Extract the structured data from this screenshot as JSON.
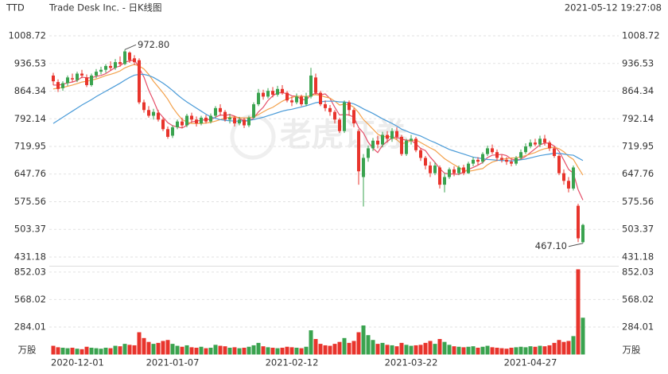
{
  "chart_data": [
    {
      "type": "candlestick",
      "ticker": "TTD",
      "title": "Trade Desk Inc. - 日K线图",
      "timestamp": "2021-05-12 19:27:08",
      "watermark": "老虎证券",
      "categories": [
        "2020-12-01",
        null,
        null,
        null,
        null,
        null,
        null,
        null,
        null,
        null,
        null,
        null,
        null,
        null,
        null,
        null,
        null,
        null,
        null,
        null,
        null,
        null,
        null,
        null,
        null,
        "2021-01-07",
        null,
        null,
        null,
        null,
        null,
        null,
        null,
        null,
        null,
        null,
        null,
        null,
        null,
        null,
        null,
        null,
        null,
        null,
        null,
        null,
        null,
        null,
        null,
        null,
        "2021-02-12",
        null,
        null,
        null,
        null,
        null,
        null,
        null,
        null,
        null,
        null,
        null,
        null,
        null,
        null,
        null,
        null,
        null,
        null,
        null,
        null,
        null,
        null,
        null,
        null,
        "2021-03-22",
        null,
        null,
        null,
        null,
        null,
        null,
        null,
        null,
        null,
        null,
        null,
        null,
        null,
        null,
        null,
        null,
        null,
        null,
        null,
        null,
        null,
        null,
        null,
        null,
        "2021-04-27",
        null,
        null,
        null,
        null,
        null,
        null,
        null,
        null,
        null,
        null,
        null
      ],
      "open": [
        905,
        888,
        872,
        885,
        898,
        893,
        910,
        900,
        880,
        905,
        915,
        920,
        930,
        925,
        940,
        935,
        965,
        950,
        945,
        835,
        815,
        800,
        808,
        790,
        765,
        748,
        770,
        785,
        775,
        800,
        790,
        780,
        795,
        785,
        800,
        820,
        810,
        790,
        795,
        780,
        790,
        775,
        795,
        830,
        860,
        850,
        865,
        855,
        870,
        860,
        840,
        835,
        850,
        830,
        850,
        900,
        860,
        830,
        820,
        810,
        790,
        760,
        835,
        815,
        760,
        640,
        690,
        715,
        735,
        725,
        750,
        740,
        760,
        745,
        700,
        735,
        740,
        710,
        690,
        670,
        650,
        665,
        620,
        640,
        660,
        650,
        665,
        650,
        675,
        685,
        680,
        700,
        715,
        705,
        690,
        685,
        680,
        675,
        690,
        705,
        720,
        730,
        725,
        740,
        730,
        715,
        695,
        650,
        630,
        610,
        565,
        470
      ],
      "high": [
        912,
        895,
        890,
        905,
        910,
        915,
        920,
        908,
        910,
        922,
        928,
        935,
        942,
        948,
        955,
        972.8,
        968,
        958,
        950,
        842,
        825,
        818,
        815,
        795,
        772,
        775,
        790,
        795,
        805,
        808,
        798,
        800,
        802,
        806,
        825,
        830,
        815,
        805,
        800,
        797,
        795,
        800,
        835,
        870,
        868,
        872,
        875,
        878,
        880,
        865,
        850,
        858,
        855,
        860,
        925,
        910,
        865,
        840,
        828,
        815,
        795,
        840,
        840,
        820,
        765,
        700,
        722,
        742,
        748,
        758,
        760,
        768,
        770,
        750,
        740,
        750,
        745,
        715,
        695,
        680,
        678,
        670,
        650,
        665,
        668,
        670,
        672,
        680,
        692,
        692,
        705,
        722,
        725,
        712,
        698,
        692,
        688,
        695,
        712,
        728,
        738,
        740,
        748,
        750,
        735,
        720,
        700,
        660,
        640,
        670,
        570,
        518
      ],
      "low": [
        880,
        862,
        865,
        878,
        888,
        888,
        898,
        875,
        876,
        898,
        908,
        912,
        918,
        920,
        928,
        932,
        938,
        932,
        830,
        808,
        795,
        790,
        785,
        760,
        740,
        742,
        765,
        768,
        770,
        782,
        772,
        775,
        780,
        780,
        795,
        800,
        785,
        780,
        772,
        775,
        768,
        770,
        792,
        825,
        842,
        845,
        848,
        850,
        855,
        835,
        825,
        830,
        825,
        825,
        845,
        855,
        825,
        812,
        800,
        780,
        755,
        755,
        800,
        770,
        620,
        563,
        680,
        708,
        715,
        718,
        730,
        732,
        738,
        695,
        695,
        725,
        705,
        682,
        660,
        640,
        645,
        610,
        600,
        635,
        642,
        645,
        645,
        648,
        668,
        672,
        675,
        695,
        700,
        682,
        678,
        672,
        668,
        670,
        685,
        700,
        715,
        720,
        718,
        722,
        708,
        690,
        645,
        620,
        600,
        605,
        470,
        467.1
      ],
      "close": [
        890,
        870,
        885,
        900,
        895,
        910,
        905,
        880,
        905,
        915,
        920,
        930,
        925,
        940,
        935,
        968,
        945,
        940,
        835,
        815,
        800,
        810,
        790,
        765,
        745,
        770,
        785,
        775,
        800,
        790,
        780,
        795,
        785,
        800,
        820,
        810,
        790,
        795,
        780,
        790,
        775,
        795,
        830,
        860,
        850,
        865,
        855,
        870,
        860,
        840,
        835,
        850,
        830,
        850,
        905,
        860,
        830,
        820,
        810,
        790,
        760,
        835,
        815,
        780,
        655,
        690,
        715,
        735,
        725,
        750,
        740,
        760,
        745,
        700,
        735,
        740,
        710,
        690,
        670,
        650,
        670,
        620,
        640,
        660,
        650,
        665,
        650,
        675,
        685,
        680,
        700,
        715,
        705,
        690,
        685,
        680,
        675,
        690,
        705,
        720,
        730,
        725,
        740,
        730,
        715,
        695,
        650,
        630,
        610,
        665,
        480,
        515
      ],
      "up_color": "#3aa34f",
      "down_color": "#e8342c",
      "high_label": "972.80",
      "low_label": "467.10",
      "ylim": [
        410.4,
        1029.5
      ],
      "yticks": [
        431.18,
        503.37,
        575.56,
        647.76,
        719.95,
        792.14,
        864.34,
        936.53,
        1008.72
      ],
      "grid": true,
      "series": [
        {
          "color": "#e5506a",
          "values": [
            880,
            880,
            882,
            886,
            888,
            892,
            901,
            899,
            899,
            903,
            905,
            910,
            918,
            926,
            930,
            940,
            943,
            946,
            925,
            901,
            867,
            840,
            810,
            796,
            782,
            774,
            771,
            768,
            775,
            784,
            786,
            788,
            790,
            790,
            796,
            802,
            801,
            803,
            799,
            793,
            786,
            787,
            794,
            810,
            822,
            840,
            852,
            860,
            860,
            858,
            852,
            851,
            843,
            841,
            854,
            859,
            855,
            857,
            845,
            822,
            802,
            803,
            802,
            796,
            769,
            755,
            731,
            715,
            704,
            723,
            733,
            742,
            744,
            739,
            736,
            736,
            726,
            715,
            709,
            692,
            678,
            662,
            650,
            648,
            648,
            647,
            653,
            660,
            665,
            671,
            678,
            691,
            697,
            698,
            699,
            696,
            687,
            684,
            687,
            694,
            704,
            714,
            724,
            729,
            728,
            721,
            707,
            684,
            660,
            650,
            607,
            580
          ]
        },
        {
          "color": "#f3a14b",
          "values": [
            870,
            872,
            874,
            877,
            880,
            884,
            888,
            890,
            893,
            896,
            900,
            905,
            908,
            912,
            917,
            925,
            930,
            934,
            930,
            922,
            908,
            890,
            875,
            860,
            843,
            822,
            805,
            790,
            784,
            780,
            780,
            780,
            781,
            783,
            786,
            790,
            794,
            796,
            797,
            795,
            794,
            795,
            797,
            803,
            810,
            817,
            822,
            830,
            838,
            844,
            848,
            851,
            851,
            850,
            853,
            855,
            853,
            849,
            846,
            838,
            828,
            830,
            829,
            822,
            808,
            790,
            778,
            765,
            752,
            745,
            746,
            745,
            737,
            727,
            730,
            735,
            737,
            730,
            723,
            716,
            710,
            699,
            688,
            680,
            672,
            665,
            658,
            655,
            657,
            660,
            662,
            672,
            679,
            683,
            686,
            688,
            690,
            690,
            693,
            696,
            700,
            704,
            710,
            714,
            716,
            718,
            714,
            706,
            694,
            686,
            665,
            645
          ]
        },
        {
          "color": "#4a9bd8",
          "values": [
            780,
            788,
            796,
            804,
            812,
            820,
            828,
            835,
            842,
            850,
            857,
            864,
            871,
            878,
            885,
            893,
            900,
            906,
            908,
            908,
            905,
            900,
            893,
            885,
            876,
            866,
            855,
            845,
            836,
            828,
            820,
            812,
            804,
            797,
            793,
            790,
            788,
            787,
            786,
            786,
            787,
            788,
            790,
            793,
            796,
            800,
            804,
            808,
            812,
            815,
            817,
            820,
            823,
            826,
            830,
            834,
            836,
            838,
            838,
            838,
            836,
            836,
            834,
            831,
            825,
            818,
            812,
            806,
            799,
            792,
            786,
            780,
            773,
            765,
            760,
            755,
            751,
            747,
            741,
            735,
            730,
            724,
            718,
            712,
            708,
            704,
            700,
            696,
            692,
            690,
            688,
            686,
            685,
            684,
            683,
            683,
            682,
            683,
            685,
            687,
            690,
            693,
            696,
            698,
            700,
            702,
            702,
            700,
            698,
            697,
            690,
            683
          ]
        }
      ]
    },
    {
      "type": "bar",
      "unit": "万股",
      "values": [
        90,
        75,
        70,
        65,
        70,
        60,
        55,
        80,
        70,
        65,
        60,
        70,
        65,
        90,
        85,
        110,
        100,
        95,
        230,
        170,
        130,
        110,
        120,
        140,
        150,
        110,
        90,
        80,
        95,
        75,
        70,
        80,
        65,
        70,
        100,
        90,
        85,
        70,
        75,
        65,
        70,
        80,
        95,
        120,
        85,
        75,
        70,
        65,
        70,
        80,
        75,
        70,
        65,
        80,
        250,
        160,
        110,
        95,
        90,
        110,
        130,
        170,
        120,
        140,
        230,
        300,
        200,
        150,
        110,
        120,
        100,
        95,
        85,
        120,
        100,
        90,
        95,
        100,
        120,
        140,
        110,
        160,
        130,
        100,
        85,
        80,
        75,
        80,
        85,
        70,
        80,
        90,
        75,
        70,
        65,
        60,
        70,
        75,
        80,
        75,
        85,
        80,
        90,
        85,
        95,
        120,
        150,
        130,
        140,
        190,
        880,
        380
      ],
      "ylim": [
        0,
        900
      ],
      "yticks": [
        284.01,
        568.02,
        852.03
      ],
      "grid": true
    }
  ]
}
